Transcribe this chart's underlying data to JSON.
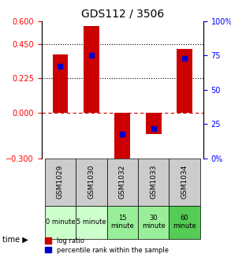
{
  "title": "GDS112 / 3506",
  "samples": [
    "GSM1029",
    "GSM1030",
    "GSM1032",
    "GSM1033",
    "GSM1034"
  ],
  "log_ratios": [
    0.38,
    0.57,
    -0.32,
    -0.14,
    0.42
  ],
  "percentile_ranks": [
    67,
    75,
    18,
    22,
    73
  ],
  "left_ylim": [
    -0.3,
    0.6
  ],
  "left_yticks": [
    -0.3,
    0,
    0.225,
    0.45,
    0.6
  ],
  "right_ylim": [
    0,
    100
  ],
  "right_yticks": [
    0,
    25,
    50,
    75,
    100
  ],
  "right_yticklabels": [
    "0%",
    "25",
    "50",
    "75",
    "100%"
  ],
  "bar_color": "#cc0000",
  "percentile_color": "#0000cc",
  "zero_line_color": "#cc0000",
  "gridline_values": [
    0.225,
    0.45
  ],
  "time_labels": [
    "0 minute",
    "5 minute",
    "15\nminute",
    "30\nminute",
    "60\nminute"
  ],
  "time_bg_colors": [
    "#ccffcc",
    "#ccffcc",
    "#99ee99",
    "#99ee99",
    "#55cc55"
  ],
  "sample_bg_color": "#cccccc",
  "bar_width": 0.5
}
